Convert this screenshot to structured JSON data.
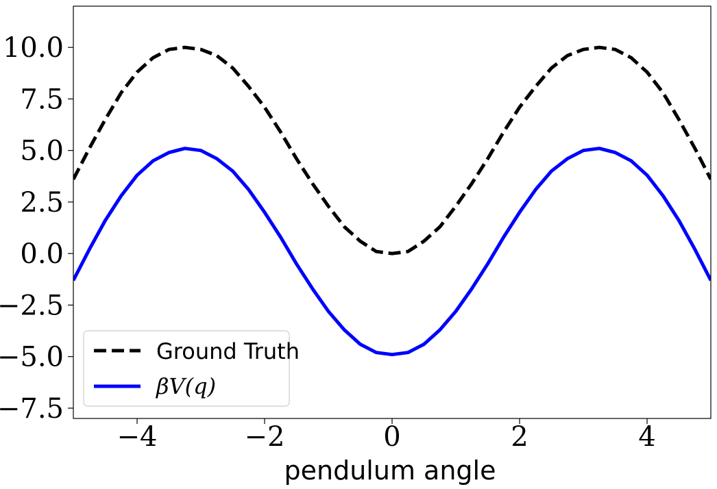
{
  "chart_data": {
    "type": "line",
    "title": "",
    "xlabel": "pendulum angle",
    "ylabel": "",
    "xlim": [
      -5,
      5
    ],
    "ylim": [
      -8,
      12
    ],
    "x_ticks": [
      -4,
      -2,
      0,
      2,
      4
    ],
    "x_tick_labels": [
      "−4",
      "−2",
      "0",
      "2",
      "4"
    ],
    "y_ticks": [
      -7.5,
      -5.0,
      -2.5,
      0.0,
      2.5,
      5.0,
      7.5,
      10.0
    ],
    "y_tick_labels": [
      "−7.5",
      "−5.0",
      "−2.5",
      "0.0",
      "2.5",
      "5.0",
      "7.5",
      "10.0"
    ],
    "grid": false,
    "legend_placement": "lower-left",
    "x": [
      -5.0,
      -4.75,
      -4.5,
      -4.25,
      -4.0,
      -3.75,
      -3.5,
      -3.25,
      -3.0,
      -2.75,
      -2.5,
      -2.25,
      -2.0,
      -1.75,
      -1.5,
      -1.25,
      -1.0,
      -0.75,
      -0.5,
      -0.25,
      0.0,
      0.25,
      0.5,
      0.75,
      1.0,
      1.25,
      1.5,
      1.75,
      2.0,
      2.25,
      2.5,
      2.75,
      3.0,
      3.25,
      3.5,
      3.75,
      4.0,
      4.25,
      4.5,
      4.75,
      5.0
    ],
    "series": [
      {
        "name": "Ground Truth",
        "style": "dashed",
        "color": "#000000",
        "values": [
          3.6,
          5.1,
          6.5,
          7.8,
          8.8,
          9.5,
          9.9,
          10.0,
          9.9,
          9.6,
          9.0,
          8.1,
          7.1,
          5.9,
          4.6,
          3.4,
          2.3,
          1.3,
          0.6,
          0.1,
          0.0,
          0.1,
          0.6,
          1.3,
          2.3,
          3.4,
          4.6,
          5.9,
          7.1,
          8.1,
          9.0,
          9.6,
          9.9,
          10.0,
          9.9,
          9.5,
          8.8,
          7.8,
          6.5,
          5.1,
          3.6
        ]
      },
      {
        "name": "βV(q)",
        "style": "solid",
        "color": "#0000ff",
        "values": [
          -1.3,
          0.2,
          1.6,
          2.8,
          3.8,
          4.5,
          4.9,
          5.1,
          5.0,
          4.6,
          4.0,
          3.1,
          2.0,
          0.8,
          -0.5,
          -1.7,
          -2.8,
          -3.7,
          -4.4,
          -4.8,
          -4.9,
          -4.8,
          -4.4,
          -3.7,
          -2.8,
          -1.7,
          -0.5,
          0.8,
          2.0,
          3.1,
          4.0,
          4.6,
          5.0,
          5.1,
          4.9,
          4.5,
          3.8,
          2.8,
          1.6,
          0.2,
          -1.3
        ]
      }
    ]
  }
}
